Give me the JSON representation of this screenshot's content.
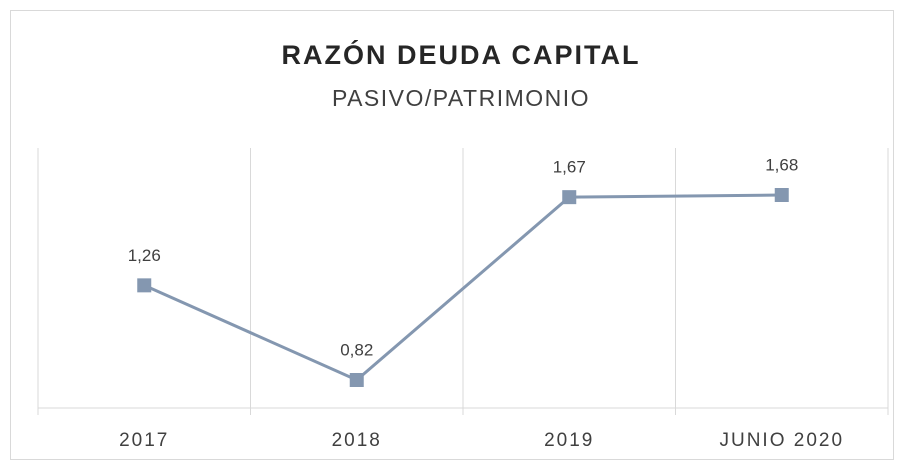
{
  "chart_data": {
    "type": "line",
    "title": "RAZÓN DEUDA CAPITAL",
    "subtitle": "PASIVO/PATRIMONIO",
    "categories": [
      "2017",
      "2018",
      "2019",
      "JUNIO 2020"
    ],
    "values": [
      1.26,
      0.82,
      1.67,
      1.68
    ],
    "value_labels": [
      "1,26",
      "0,82",
      "1,67",
      "1,68"
    ],
    "color": "#8497b0",
    "grid": true
  }
}
